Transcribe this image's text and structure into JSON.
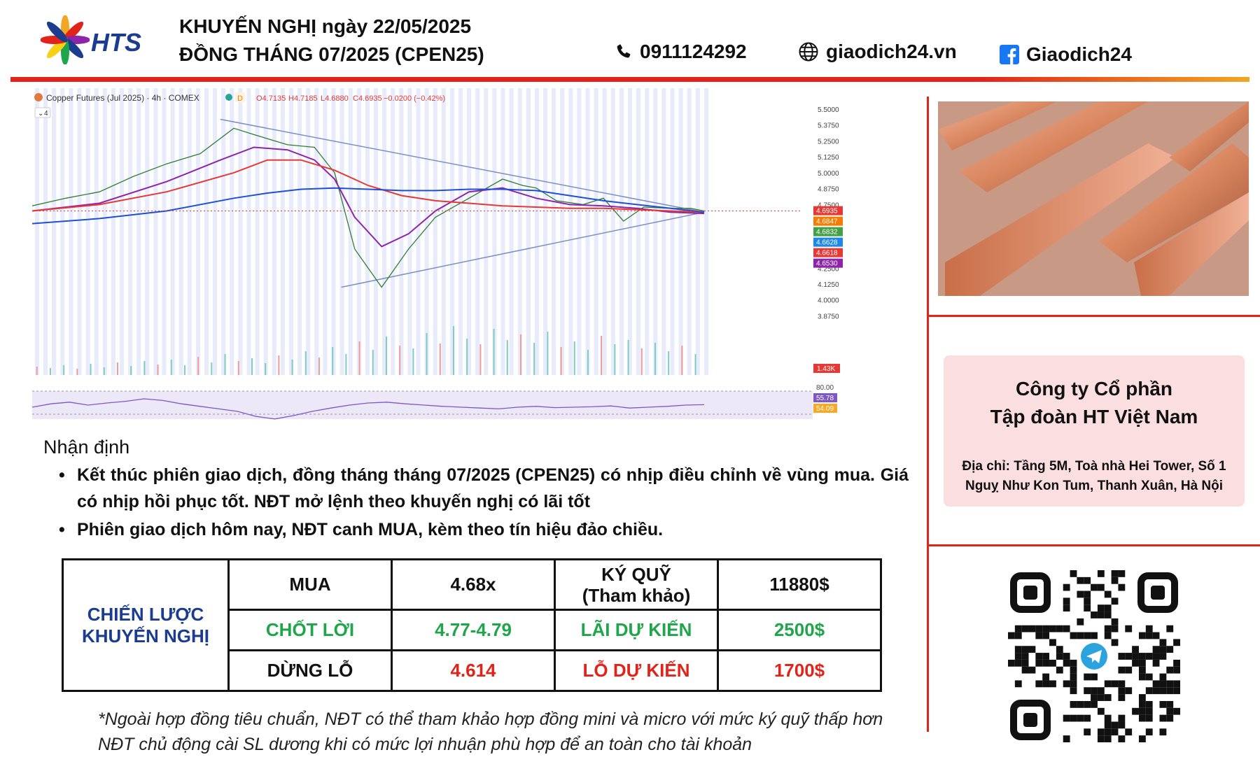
{
  "header": {
    "logo_text": "HTS",
    "title_line1": "KHUYẾN NGHỊ ngày 22/05/2025",
    "title_line2": "ĐỒNG THÁNG 07/2025 (CPEN25)",
    "phone": "0911124292",
    "website": "giaodich24.vn",
    "facebook": "Giaodich24",
    "accent_color": "#e2231a",
    "icons": [
      "phone-icon",
      "globe-icon",
      "facebook-icon"
    ]
  },
  "chart_data": {
    "type": "line",
    "title": "Copper Futures (Jul 2025) · 4h · COMEX",
    "interval_badge": "4",
    "ohlc": {
      "open": "O4.7135",
      "high": "H4.7185",
      "low": "L4.6880",
      "close": "C4.6935",
      "change": "−0.0200 (−0.42%)"
    },
    "y_ticks": [
      "5.5000",
      "5.3750",
      "5.2500",
      "5.1250",
      "5.0000",
      "4.8750",
      "4.7500",
      "4.2500",
      "4.1250",
      "4.0000",
      "3.8750"
    ],
    "ylim": [
      3.85,
      5.5
    ],
    "price_labels": [
      {
        "text": "4.6935",
        "color": "#e53935"
      },
      {
        "text": "4.6847",
        "color": "#f57c00"
      },
      {
        "text": "4.6832",
        "color": "#43a047"
      },
      {
        "text": "4.6628",
        "color": "#1e88e5"
      },
      {
        "text": "4.6618",
        "color": "#e53935"
      },
      {
        "text": "4.6530",
        "color": "#8e24aa"
      }
    ],
    "volume_label": "1.43K",
    "rsi_labels": [
      "80.00",
      "55.78",
      "54.09"
    ],
    "series": [
      {
        "color": "#2e7d32",
        "x": [
          0,
          5,
          10,
          15,
          20,
          25,
          30,
          33,
          38,
          42,
          45,
          48,
          52,
          56,
          60,
          65,
          70,
          73,
          75,
          78,
          82,
          85,
          88,
          91,
          95,
          98,
          100
        ],
        "values": [
          4.74,
          4.8,
          4.85,
          4.97,
          5.07,
          5.15,
          5.35,
          5.3,
          5.22,
          5.2,
          5.0,
          4.4,
          4.1,
          4.4,
          4.65,
          4.8,
          4.95,
          4.9,
          4.88,
          4.78,
          4.75,
          4.8,
          4.62,
          4.73,
          4.72,
          4.72,
          4.7
        ]
      },
      {
        "color": "#8e24aa",
        "x": [
          0,
          10,
          20,
          28,
          33,
          38,
          42,
          45,
          48,
          52,
          56,
          60,
          65,
          70,
          75,
          80,
          85,
          90,
          95,
          100
        ],
        "values": [
          4.7,
          4.76,
          4.93,
          5.1,
          5.2,
          5.18,
          5.1,
          4.95,
          4.65,
          4.42,
          4.52,
          4.7,
          4.85,
          4.88,
          4.8,
          4.75,
          4.74,
          4.72,
          4.69,
          4.68
        ]
      },
      {
        "color": "#e53935",
        "x": [
          0,
          10,
          20,
          30,
          35,
          40,
          45,
          50,
          55,
          60,
          65,
          70,
          75,
          80,
          85,
          90,
          95,
          100
        ],
        "values": [
          4.7,
          4.75,
          4.85,
          5.0,
          5.1,
          5.1,
          5.02,
          4.9,
          4.82,
          4.78,
          4.76,
          4.74,
          4.73,
          4.72,
          4.72,
          4.71,
          4.7,
          4.69
        ]
      },
      {
        "color": "#1e4fd6",
        "x": [
          0,
          10,
          20,
          30,
          35,
          40,
          45,
          50,
          55,
          60,
          65,
          70,
          75,
          80,
          85,
          90,
          95,
          100
        ],
        "values": [
          4.6,
          4.64,
          4.7,
          4.8,
          4.84,
          4.87,
          4.88,
          4.87,
          4.86,
          4.86,
          4.87,
          4.87,
          4.86,
          4.82,
          4.78,
          4.75,
          4.72,
          4.69
        ]
      }
    ],
    "trendlines": [
      {
        "color": "#7a8fc4",
        "x": [
          28,
          100
        ],
        "values": [
          5.42,
          4.69
        ]
      },
      {
        "color": "#7a8fc4",
        "x": [
          46,
          100
        ],
        "values": [
          4.1,
          4.69
        ]
      }
    ],
    "volume": [
      12,
      10,
      14,
      9,
      16,
      11,
      18,
      13,
      20,
      15,
      22,
      14,
      26,
      18,
      30,
      20,
      24,
      17,
      28,
      22,
      34,
      25,
      40,
      30,
      48,
      36,
      55,
      42,
      38,
      60,
      45,
      70,
      52,
      44,
      66,
      50,
      58,
      46,
      62,
      40,
      48,
      36,
      56,
      44,
      50,
      38,
      46,
      34,
      42,
      30
    ],
    "rsi": [
      50,
      58,
      62,
      55,
      60,
      64,
      70,
      66,
      58,
      52,
      46,
      40,
      28,
      22,
      30,
      40,
      48,
      55,
      60,
      62,
      58,
      55,
      52,
      50,
      48,
      46,
      50,
      52,
      49,
      50,
      51,
      53,
      48,
      50,
      52,
      55,
      56
    ]
  },
  "analysis": {
    "title": "Nhận định",
    "bullet1": "Kết thúc phiên giao dịch, đồng tháng tháng 07/2025 (CPEN25) có nhịp điều chỉnh về vùng mua. Giá có nhịp hồi phục tốt. NĐT mở lệnh theo khuyến nghị có lãi tốt",
    "bullet2": "Phiên giao dịch hôm nay, NĐT canh MUA, kèm theo tín hiệu đảo chiều."
  },
  "strategy": {
    "header_line1": "CHIẾN LƯỢC",
    "header_line2": "KHUYẾN NGHỊ",
    "rows": [
      [
        "MUA",
        "4.68x",
        "KÝ QUỸ",
        "(Tham khảo)",
        "11880$"
      ],
      [
        "CHỐT LỜI",
        "4.77-4.79",
        "LÃI DỰ KIẾN",
        "2500$"
      ],
      [
        "DỪNG LỖ",
        "4.614",
        "LỖ DỰ KIẾN",
        "1700$"
      ]
    ]
  },
  "notes": {
    "line1": "*Ngoài hợp đồng tiêu chuẩn, NĐT có thể tham khảo hợp đồng mini và micro với mức ký quỹ thấp hơn",
    "line2": "NĐT chủ động cài SL dương khi có mức lợi nhuận phù hợp để an toàn cho tài khoản"
  },
  "company": {
    "name_line1": "Công ty Cổ phần",
    "name_line2": "Tập đoàn HT Việt Nam",
    "address": "Địa chỉ: Tầng 5M, Toà nhà Hei Tower, Số 1 Nguỵ Như Kon Tum, Thanh Xuân, Hà Nội"
  },
  "images": {
    "copper": "copper-bars-photo",
    "qr": "telegram-qr-code"
  }
}
